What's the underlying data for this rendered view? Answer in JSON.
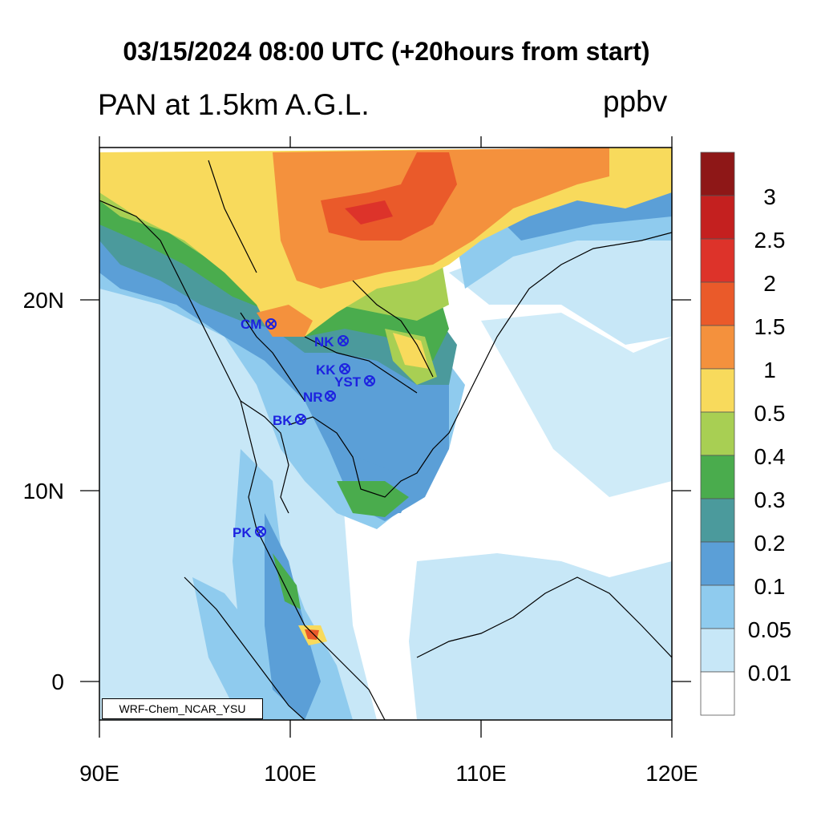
{
  "title": "03/15/2024 08:00 UTC (+20hours from start)",
  "variable": "PAN at 1.5km A.G.L.",
  "units": "ppbv",
  "credit": "WRF-Chem_NCAR_YSU",
  "axes": {
    "x_ticks": [
      "90E",
      "100E",
      "110E",
      "120E"
    ],
    "y_ticks": [
      "20N",
      "10N",
      "0"
    ]
  },
  "colorbar": {
    "labels": [
      "3",
      "2.5",
      "2",
      "1.5",
      "1",
      "0.5",
      "0.4",
      "0.3",
      "0.2",
      "0.1",
      "0.05",
      "0.01"
    ],
    "colors": [
      "#8e1717",
      "#c4201f",
      "#dd332a",
      "#ea5a2a",
      "#f4913d",
      "#f8da5c",
      "#a8cf53",
      "#4aac4d",
      "#4b9a9c",
      "#5b9fd7",
      "#8fcbee",
      "#c7e7f7",
      "#ffffff"
    ]
  },
  "stations": [
    {
      "code": "CM",
      "lon": 98.9,
      "lat": 18.8
    },
    {
      "code": "NK",
      "lon": 102.7,
      "lat": 17.9
    },
    {
      "code": "KK",
      "lon": 102.8,
      "lat": 16.4
    },
    {
      "code": "YST",
      "lon": 104.1,
      "lat": 15.8
    },
    {
      "code": "NR",
      "lon": 102.1,
      "lat": 14.9
    },
    {
      "code": "BK",
      "lon": 100.5,
      "lat": 13.7
    },
    {
      "code": "PK",
      "lon": 98.4,
      "lat": 7.9
    }
  ]
}
